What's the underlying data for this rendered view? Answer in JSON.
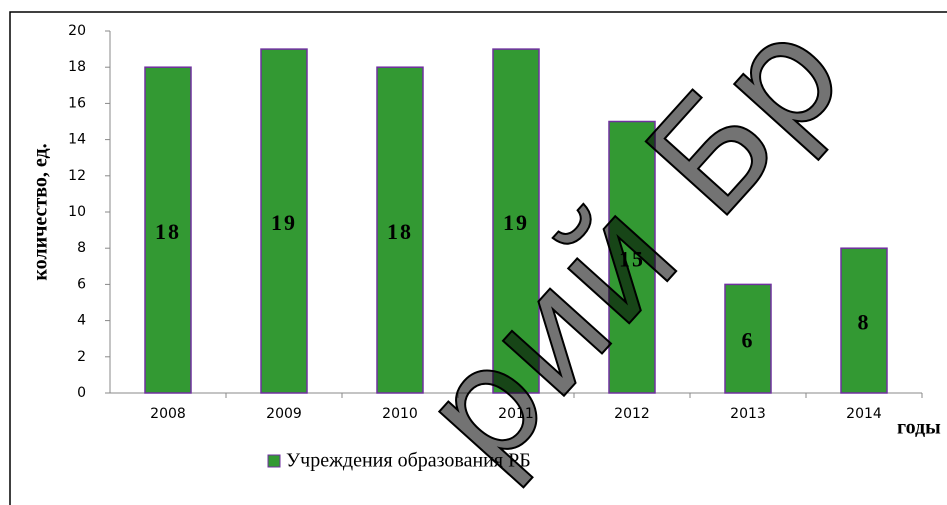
{
  "chart_data": {
    "type": "bar",
    "categories": [
      "2008",
      "2009",
      "2010",
      "2011",
      "2012",
      "2013",
      "2014"
    ],
    "series": [
      {
        "name": "Учреждения образования РБ",
        "color": "#339933",
        "values": [
          18,
          19,
          18,
          19,
          15,
          6,
          8
        ]
      }
    ],
    "ylim": [
      0,
      20
    ],
    "yticks": [
      0,
      2,
      4,
      6,
      8,
      10,
      12,
      14,
      16,
      18,
      20
    ],
    "y_label": "количество, ед.",
    "x_label": "годы",
    "legend": "bottom",
    "watermark": "рий Бр"
  }
}
